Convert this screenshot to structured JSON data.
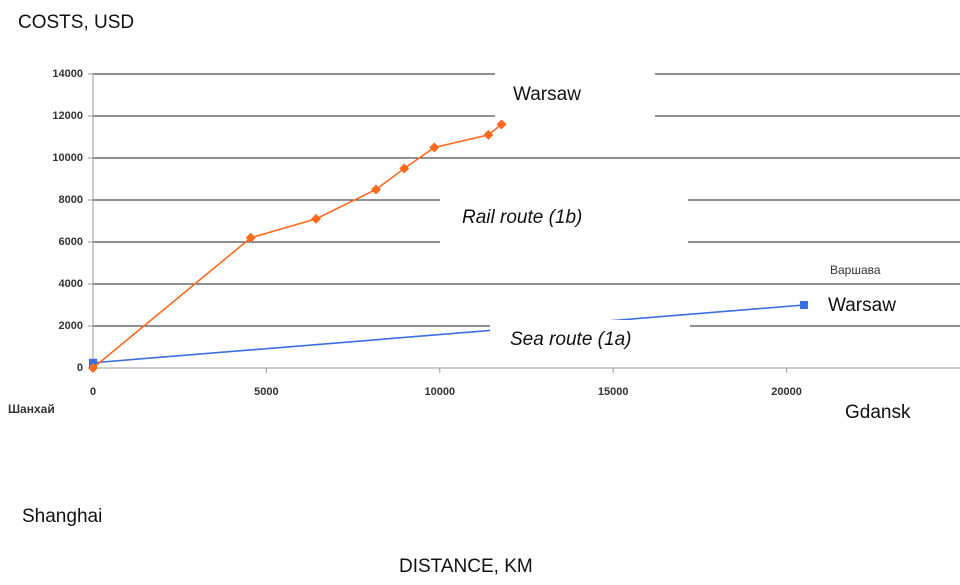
{
  "chart_data": {
    "type": "line",
    "y_label": "COSTS, USD",
    "x_label": "DISTANCE, KM",
    "xlim": [
      0,
      25000
    ],
    "xticks": [
      0,
      5000,
      10000,
      15000,
      20000
    ],
    "ylim": [
      0,
      14000
    ],
    "yticks": [
      0,
      2000,
      4000,
      6000,
      8000,
      10000,
      12000,
      14000
    ],
    "grid": true,
    "series": [
      {
        "name": "Rail route (1b)",
        "color": "#ff6a1f",
        "x": [
          0,
          4550,
          6430,
          8160,
          8975,
          9840,
          11400,
          11780
        ],
        "values": [
          0,
          6200,
          7100,
          8500,
          9500,
          10500,
          11100,
          11600
        ]
      },
      {
        "name": "Sea route (1a)",
        "color": "#3b6fe0",
        "x": [
          0,
          20500
        ],
        "values": [
          250,
          3000
        ]
      }
    ],
    "annotations": [
      "Warsaw",
      "Варшава",
      "Warsaw",
      "Шанхай",
      "Gdansk",
      "Shanghai"
    ]
  }
}
